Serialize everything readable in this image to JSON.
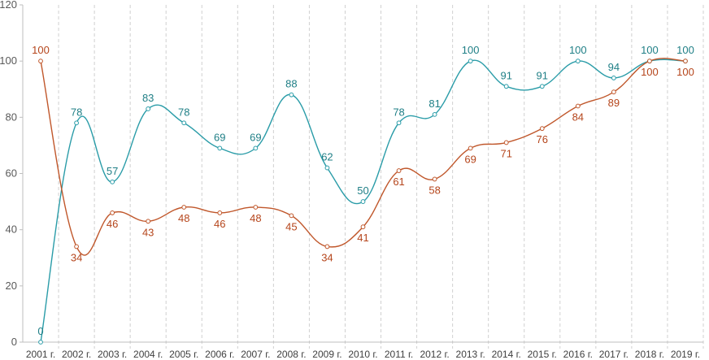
{
  "chart_data": {
    "type": "line",
    "title": "",
    "xlabel": "",
    "ylabel": "",
    "ylim": [
      0,
      120
    ],
    "yticks": [
      0,
      20,
      40,
      60,
      80,
      100,
      120
    ],
    "grid": "vertical dashed",
    "legend": "none",
    "categories": [
      "2001 г.",
      "2002 г.",
      "2003 г.",
      "2004 г.",
      "2005 г.",
      "2006 г.",
      "2007 г.",
      "2008 г.",
      "2009 г.",
      "2010 г.",
      "2011 г.",
      "2012 г.",
      "2013 г.",
      "2014 г.",
      "2015 г.",
      "2016 г.",
      "2017 г.",
      "2018 г.",
      "2019 г."
    ],
    "series": [
      {
        "name": "teal",
        "color": "#2A9CA8",
        "label_color": "#1F7F86",
        "values": [
          0,
          78,
          57,
          83,
          78,
          69,
          69,
          88,
          62,
          50,
          78,
          81,
          100,
          91,
          91,
          100,
          94,
          100,
          100
        ],
        "label_pos": [
          "above",
          "above",
          "above",
          "above",
          "above",
          "above",
          "above",
          "above",
          "above",
          "above",
          "above",
          "above",
          "above",
          "above",
          "above",
          "above",
          "above",
          "above",
          "above"
        ]
      },
      {
        "name": "orange",
        "color": "#C0572B",
        "label_color": "#B5451B",
        "values": [
          100,
          34,
          46,
          43,
          48,
          46,
          48,
          45,
          34,
          41,
          61,
          58,
          69,
          71,
          76,
          84,
          89,
          100,
          100
        ],
        "label_pos": [
          "above",
          "below",
          "below",
          "below",
          "below",
          "below",
          "below",
          "below",
          "below",
          "below",
          "below",
          "below",
          "below",
          "below",
          "below",
          "below",
          "below",
          "below",
          "below"
        ]
      }
    ]
  }
}
